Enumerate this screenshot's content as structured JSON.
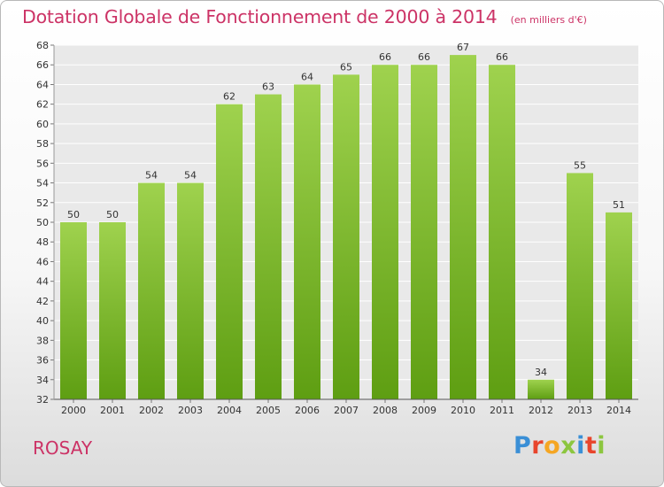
{
  "chart_data": {
    "type": "bar",
    "title": "Dotation Globale de Fonctionnement de 2000 à 2014",
    "subtitle": "(en milliers d'€)",
    "categories": [
      "2000",
      "2001",
      "2002",
      "2003",
      "2004",
      "2005",
      "2006",
      "2007",
      "2008",
      "2009",
      "2010",
      "2011",
      "2012",
      "2013",
      "2014"
    ],
    "values": [
      50,
      50,
      54,
      54,
      62,
      63,
      64,
      65,
      66,
      66,
      67,
      66,
      34,
      55,
      51
    ],
    "ylim": [
      32,
      68
    ],
    "yticks": [
      32,
      34,
      36,
      38,
      40,
      42,
      44,
      46,
      48,
      50,
      52,
      54,
      56,
      58,
      60,
      62,
      64,
      66,
      68
    ],
    "grid": true,
    "bar_color": "#7ab829"
  },
  "footer": {
    "commune": "ROSAY",
    "logo": "Proxiti",
    "logo_colors": [
      "#3a8fd6",
      "#e8452c",
      "#f5a623",
      "#8cc63f",
      "#3a8fd6",
      "#e8452c",
      "#8cc63f"
    ]
  }
}
